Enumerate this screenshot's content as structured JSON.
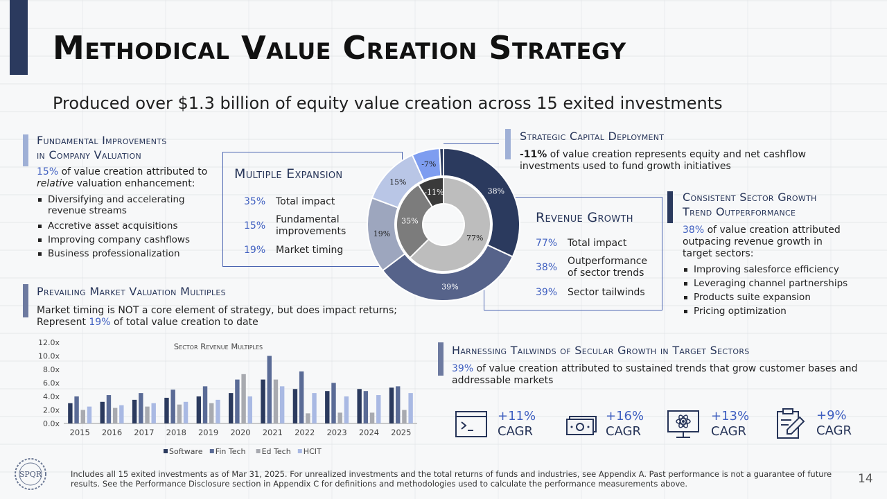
{
  "title": "Methodical Value Creation Strategy",
  "subtitle": "Produced over $1.3 billion of equity value creation across 15 exited investments",
  "fundamental": {
    "title_line1": "Fundamental Improvements",
    "title_line2": "in Company Valuation",
    "pct": "15%",
    "text1": " of value creation attributed to",
    "text_italic": "relative",
    "text2": " valuation enhancement:",
    "bullets": [
      "Diversifying and accelerating revenue streams",
      "Accretive asset acquisitions",
      "Improving company cashflows",
      "Business professionalization"
    ]
  },
  "multiple_expansion": {
    "title": "Multiple Expansion",
    "rows": [
      {
        "pct": "35%",
        "label": "Total impact"
      },
      {
        "pct": "15%",
        "label": "Fundamental improvements"
      },
      {
        "pct": "19%",
        "label": "Market timing"
      }
    ]
  },
  "strategic": {
    "title": "Strategic Capital Deployment",
    "pct": "-11%",
    "text": " of value creation represents equity and net cashflow investments used to fund growth initiatives"
  },
  "sector_growth": {
    "title_line1": "Consistent Sector Growth",
    "title_line2": "Trend Outperformance",
    "pct": "38%",
    "text": " of value creation attributed outpacing revenue growth in target sectors:",
    "bullets": [
      "Improving salesforce efficiency",
      "Leveraging channel partnerships",
      "Products suite expansion",
      "Pricing optimization"
    ]
  },
  "revenue_growth": {
    "title": "Revenue Growth",
    "rows": [
      {
        "pct": "77%",
        "label": "Total impact"
      },
      {
        "pct": "38%",
        "label": "Outperformance of sector trends"
      },
      {
        "pct": "39%",
        "label": "Sector tailwinds"
      }
    ]
  },
  "market_valuation": {
    "title": "Prevailing Market Valuation Multiples",
    "text1": "Market timing is NOT a core element of strategy, but does impact returns; Represent ",
    "pct": "19%",
    "text2": " of total value creation to date"
  },
  "tailwinds": {
    "title": "Harnessing Tailwinds of Secular Growth in Target Sectors",
    "pct": "39%",
    "text": " of value creation attributed to sustained trends that grow customer bases and addressable markets",
    "items": [
      {
        "icon": "terminal-icon",
        "value": "+11%",
        "label": "CAGR"
      },
      {
        "icon": "cash-icon",
        "value": "+16%",
        "label": "CAGR"
      },
      {
        "icon": "monitor-atom-icon",
        "value": "+13%",
        "label": "CAGR"
      },
      {
        "icon": "clipboard-pen-icon",
        "value": "+9%",
        "label": "CAGR"
      }
    ]
  },
  "footer": "Includes all 15 exited investments as of Mar 31, 2025. For unrealized investments and the total returns of funds and industries, see Appendix A. Past performance is not a guarantee of future results. See the Performance Disclosure section in Appendix C for definitions and methodologies used to calculate the performance measurements above.",
  "page_number": "14",
  "logo_text": "SPQR",
  "colors": {
    "navy": "#263458",
    "accent_blue": "#3f5fc0",
    "software": "#2b3a5e",
    "fintech": "#5a6b96",
    "edtech": "#a8aab0",
    "hcit": "#a9b9e3"
  },
  "chart_data": [
    {
      "type": "donut",
      "outer_ring": [
        {
          "label": "38%",
          "value": 38,
          "color": "#2b3a5e"
        },
        {
          "label": "39%",
          "value": 39,
          "color": "#56638a"
        },
        {
          "label": "19%",
          "value": 19,
          "color": "#9da6be"
        },
        {
          "label": "15%",
          "value": 15,
          "color": "#b9c6e6"
        },
        {
          "label": "-7%",
          "value": 7,
          "color": "#7e9df0"
        },
        {
          "label": "",
          "value": 1,
          "color": "#2b3a5e"
        }
      ],
      "inner_ring": [
        {
          "label": "77%",
          "value": 77,
          "color": "#bdbdbd"
        },
        {
          "label": "35%",
          "value": 35,
          "color": "#7c7c7c"
        },
        {
          "label": "-11%",
          "value": 11,
          "color": "#3a3a3a"
        }
      ]
    },
    {
      "type": "bar",
      "title": "Sector Revenue Multiples",
      "categories": [
        "2015",
        "2016",
        "2017",
        "2018",
        "2019",
        "2020",
        "2021",
        "2022",
        "2023",
        "2024",
        "2025"
      ],
      "series": [
        {
          "name": "Software",
          "color": "#2b3a5e",
          "values": [
            3.0,
            3.2,
            3.5,
            3.8,
            4.0,
            4.5,
            6.5,
            5.1,
            4.8,
            5.1,
            5.3
          ]
        },
        {
          "name": "Fin Tech",
          "color": "#5a6b96",
          "values": [
            4.0,
            4.2,
            4.5,
            5.0,
            5.5,
            6.5,
            10.0,
            7.7,
            6.0,
            4.8,
            5.5
          ]
        },
        {
          "name": "Ed Tech",
          "color": "#a8aab0",
          "values": [
            2.0,
            2.3,
            2.5,
            2.8,
            3.0,
            7.3,
            6.5,
            1.5,
            1.6,
            1.6,
            2.0
          ]
        },
        {
          "name": "HCIT",
          "color": "#a9b9e3",
          "values": [
            2.5,
            2.7,
            3.0,
            3.2,
            3.5,
            4.0,
            5.5,
            4.5,
            4.0,
            4.2,
            4.5
          ]
        }
      ],
      "yticks": [
        "0.0x",
        "2.0x",
        "4.0x",
        "6.0x",
        "8.0x",
        "10.0x",
        "12.0x"
      ],
      "ylim": [
        0,
        12
      ],
      "legend": "bottom"
    }
  ]
}
